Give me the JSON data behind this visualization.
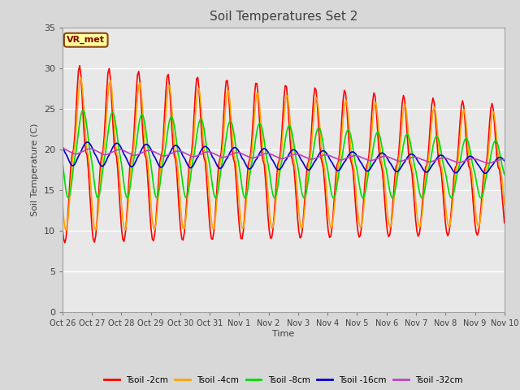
{
  "title": "Soil Temperatures Set 2",
  "xlabel": "Time",
  "ylabel": "Soil Temperature (C)",
  "ylim": [
    0,
    35
  ],
  "yticks": [
    0,
    5,
    10,
    15,
    20,
    25,
    30,
    35
  ],
  "x_labels": [
    "Oct 26",
    "Oct 27",
    "Oct 28",
    "Oct 29",
    "Oct 30",
    "Oct 31",
    "Nov 1",
    "Nov 2",
    "Nov 3",
    "Nov 4",
    "Nov 5",
    "Nov 6",
    "Nov 7",
    "Nov 8",
    "Nov 9",
    "Nov 10"
  ],
  "annotation_text": "VR_met",
  "series_colors": {
    "Tsoil -2cm": "#FF0000",
    "Tsoil -4cm": "#FFA500",
    "Tsoil -8cm": "#00DD00",
    "Tsoil -16cm": "#0000CC",
    "Tsoil -32cm": "#BB44BB"
  },
  "linewidth": 1.2,
  "bg_color": "#D8D8D8",
  "plot_bg_color": "#E8E8E8",
  "grid_color": "#FFFFFF",
  "title_color": "#404040",
  "label_color": "#404040"
}
